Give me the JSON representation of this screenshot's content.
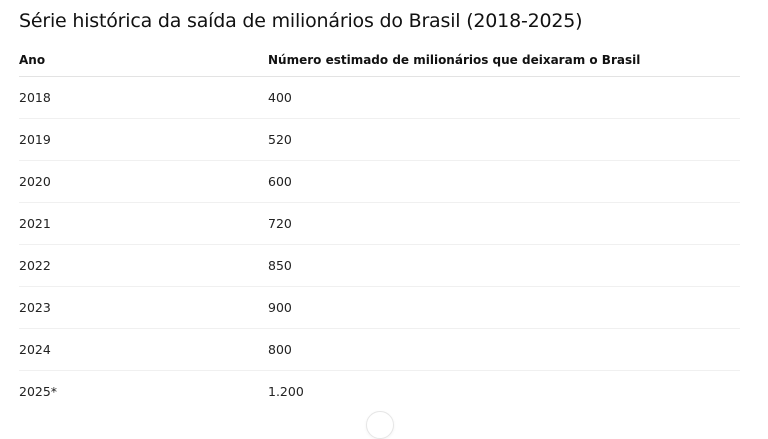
{
  "title": "Série histórica da saída de milionários do Brasil (2018-2025)",
  "table": {
    "headers": [
      "Ano",
      "Número estimado de milionários que deixaram o Brasil"
    ],
    "rows": [
      [
        "2018",
        "400"
      ],
      [
        "2019",
        "520"
      ],
      [
        "2020",
        "600"
      ],
      [
        "2021",
        "720"
      ],
      [
        "2022",
        "850"
      ],
      [
        "2023",
        "900"
      ],
      [
        "2024",
        "800"
      ],
      [
        "2025*",
        "1.200"
      ]
    ]
  },
  "scroll_button": {
    "icon": "chevron-down-icon"
  }
}
